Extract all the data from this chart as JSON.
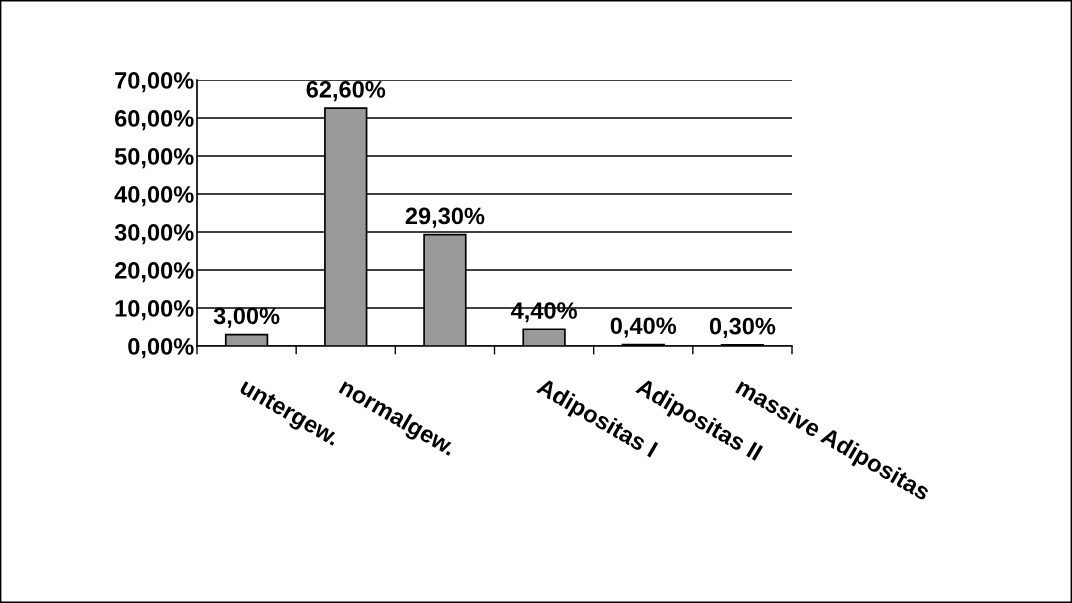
{
  "chart_data": {
    "type": "bar",
    "categories": [
      "untergew.",
      "normalgew.",
      null,
      "Adipositas I",
      "Adipositas II",
      "massive Adipositas"
    ],
    "values": [
      3.0,
      62.6,
      29.3,
      4.4,
      0.4,
      0.3
    ],
    "value_labels": [
      "3,00%",
      "62,60%",
      "29,30%",
      "4,40%",
      "0,40%",
      "0,30%"
    ],
    "color": "#999999",
    "ylim": [
      0,
      70
    ],
    "yticks": [
      {
        "value": 0,
        "label": "0,00%"
      },
      {
        "value": 10,
        "label": "10,00%"
      },
      {
        "value": 20,
        "label": "20,00%"
      },
      {
        "value": 30,
        "label": "30,00%"
      },
      {
        "value": 40,
        "label": "40,00%"
      },
      {
        "value": 50,
        "label": "50,00%"
      },
      {
        "value": 60,
        "label": "60,00%"
      },
      {
        "value": 70,
        "label": "70,00%"
      }
    ],
    "grid": "y"
  }
}
